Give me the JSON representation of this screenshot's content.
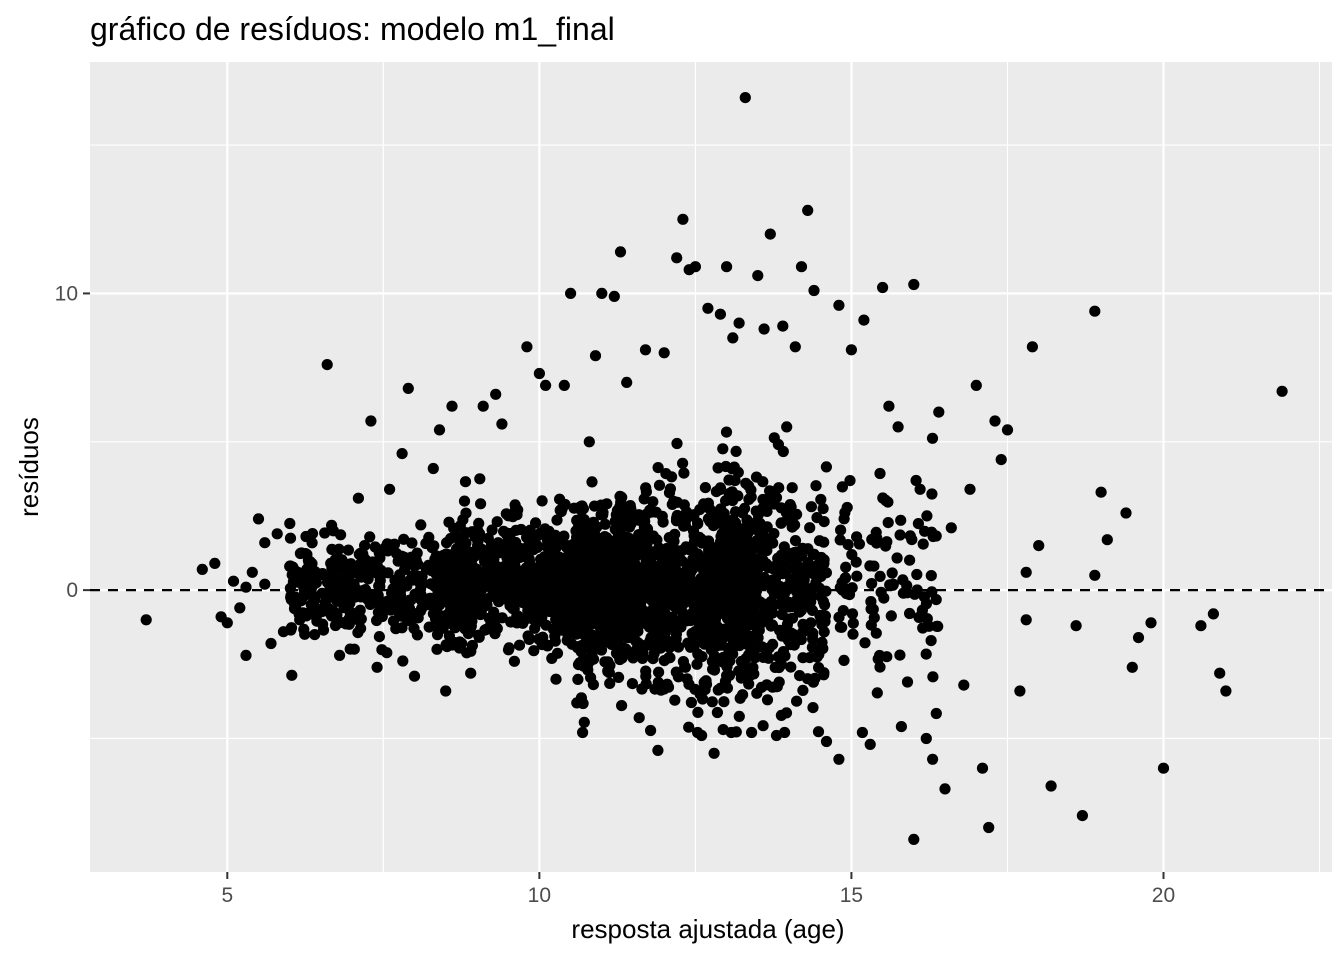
{
  "chart_data": {
    "type": "scatter",
    "title": "gráfico de resíduos: modelo m1_final",
    "xlabel": "resposta ajustada (age)",
    "ylabel": "resíduos",
    "xlim": [
      2.8,
      22.7
    ],
    "ylim": [
      -9.5,
      17.8
    ],
    "x_ticks": [
      5,
      10,
      15,
      20
    ],
    "x_tick_labels": [
      "5",
      "10",
      "15",
      "20"
    ],
    "y_ticks": [
      0,
      10
    ],
    "y_tick_labels": [
      "0",
      "10"
    ],
    "grid": true,
    "reference_line": {
      "y": 0,
      "style": "dashed",
      "color": "#000000"
    },
    "colors": {
      "panel": "#ebebeb",
      "grid": "#ffffff",
      "points": "#000000",
      "tick_label": "#4d4d4d"
    },
    "points": [
      [
        3.7,
        -1.0
      ],
      [
        4.6,
        0.7
      ],
      [
        4.8,
        0.9
      ],
      [
        4.9,
        -0.9
      ],
      [
        5.0,
        -1.1
      ],
      [
        5.1,
        0.3
      ],
      [
        5.2,
        -0.6
      ],
      [
        5.3,
        0.1
      ],
      [
        5.3,
        -2.2
      ],
      [
        5.4,
        0.6
      ],
      [
        5.5,
        2.4
      ],
      [
        5.6,
        0.2
      ],
      [
        5.6,
        1.6
      ],
      [
        5.7,
        -1.8
      ],
      [
        5.8,
        1.9
      ],
      [
        5.9,
        -1.4
      ],
      [
        6.0,
        0.8
      ],
      [
        6.1,
        -0.5
      ],
      [
        6.3,
        1.0
      ],
      [
        6.4,
        -1.5
      ],
      [
        6.6,
        7.6
      ],
      [
        6.7,
        2.0
      ],
      [
        6.8,
        -2.2
      ],
      [
        6.9,
        0.4
      ],
      [
        7.1,
        3.1
      ],
      [
        7.2,
        1.5
      ],
      [
        7.3,
        5.7
      ],
      [
        7.4,
        -2.6
      ],
      [
        7.6,
        3.4
      ],
      [
        7.7,
        -1.3
      ],
      [
        7.8,
        4.6
      ],
      [
        7.9,
        6.8
      ],
      [
        8.0,
        -2.9
      ],
      [
        8.1,
        2.2
      ],
      [
        8.3,
        4.1
      ],
      [
        8.4,
        5.4
      ],
      [
        8.5,
        -3.4
      ],
      [
        8.6,
        6.2
      ],
      [
        8.8,
        3.0
      ],
      [
        8.9,
        -2.8
      ],
      [
        9.1,
        6.2
      ],
      [
        9.3,
        6.6
      ],
      [
        9.4,
        5.6
      ],
      [
        9.6,
        -2.4
      ],
      [
        9.8,
        8.2
      ],
      [
        10.0,
        7.3
      ],
      [
        10.1,
        6.9
      ],
      [
        10.2,
        -2.3
      ],
      [
        10.4,
        6.9
      ],
      [
        10.5,
        10.0
      ],
      [
        10.6,
        -3.8
      ],
      [
        10.8,
        5.0
      ],
      [
        10.9,
        7.9
      ],
      [
        11.0,
        10.0
      ],
      [
        11.2,
        9.9
      ],
      [
        11.3,
        11.4
      ],
      [
        11.4,
        7.0
      ],
      [
        11.6,
        -4.3
      ],
      [
        11.7,
        8.1
      ],
      [
        11.9,
        -5.4
      ],
      [
        12.0,
        8.0
      ],
      [
        12.2,
        11.2
      ],
      [
        12.3,
        12.5
      ],
      [
        12.4,
        10.8
      ],
      [
        12.5,
        10.9
      ],
      [
        12.6,
        -4.9
      ],
      [
        12.7,
        9.5
      ],
      [
        12.8,
        -5.5
      ],
      [
        12.9,
        9.3
      ],
      [
        13.0,
        10.9
      ],
      [
        13.1,
        8.5
      ],
      [
        13.2,
        9.0
      ],
      [
        13.3,
        16.6
      ],
      [
        13.4,
        -4.8
      ],
      [
        13.5,
        10.6
      ],
      [
        13.6,
        8.8
      ],
      [
        13.7,
        12.0
      ],
      [
        13.8,
        -4.9
      ],
      [
        13.9,
        8.9
      ],
      [
        14.1,
        8.2
      ],
      [
        14.2,
        10.9
      ],
      [
        14.3,
        12.8
      ],
      [
        14.4,
        10.1
      ],
      [
        14.6,
        -5.1
      ],
      [
        14.8,
        9.6
      ],
      [
        14.8,
        -5.7
      ],
      [
        15.0,
        8.1
      ],
      [
        15.2,
        9.1
      ],
      [
        15.3,
        -5.2
      ],
      [
        15.5,
        10.2
      ],
      [
        15.6,
        6.2
      ],
      [
        15.8,
        -4.6
      ],
      [
        16.0,
        10.3
      ],
      [
        16.1,
        3.4
      ],
      [
        16.2,
        -5.0
      ],
      [
        16.3,
        -5.7
      ],
      [
        16.4,
        6.0
      ],
      [
        16.5,
        -6.7
      ],
      [
        16.6,
        2.1
      ],
      [
        16.8,
        -3.2
      ],
      [
        16.9,
        3.4
      ],
      [
        17.0,
        6.9
      ],
      [
        17.1,
        -6.0
      ],
      [
        17.2,
        -8.0
      ],
      [
        17.3,
        5.7
      ],
      [
        17.4,
        4.4
      ],
      [
        17.5,
        5.4
      ],
      [
        17.7,
        -3.4
      ],
      [
        17.8,
        0.6
      ],
      [
        17.9,
        8.2
      ],
      [
        18.0,
        1.5
      ],
      [
        18.2,
        -6.6
      ],
      [
        18.6,
        -1.2
      ],
      [
        18.7,
        -7.6
      ],
      [
        18.9,
        0.5
      ],
      [
        18.9,
        9.4
      ],
      [
        19.0,
        3.3
      ],
      [
        19.1,
        1.7
      ],
      [
        19.4,
        2.6
      ],
      [
        19.5,
        -2.6
      ],
      [
        19.6,
        -1.6
      ],
      [
        19.8,
        -1.1
      ],
      [
        20.0,
        -6.0
      ],
      [
        20.6,
        -1.2
      ],
      [
        20.8,
        -0.8
      ],
      [
        20.9,
        -2.8
      ],
      [
        21.0,
        -3.4
      ],
      [
        21.9,
        6.7
      ],
      [
        16.0,
        -8.4
      ],
      [
        17.8,
        -1.0
      ]
    ],
    "dense_cloud": [
      {
        "x_center": 7.5,
        "x_spread": 1.5,
        "y_center": 0.0,
        "y_spread": 1.1,
        "count": 420
      },
      {
        "x_center": 10.0,
        "x_spread": 1.5,
        "y_center": 0.2,
        "y_spread": 1.5,
        "count": 800
      },
      {
        "x_center": 12.0,
        "x_spread": 1.4,
        "y_center": 0.0,
        "y_spread": 2.1,
        "count": 1000
      },
      {
        "x_center": 13.6,
        "x_spread": 1.0,
        "y_center": 0.2,
        "y_spread": 2.5,
        "count": 500
      },
      {
        "x_center": 15.6,
        "x_spread": 0.8,
        "y_center": 0.0,
        "y_spread": 2.6,
        "count": 110
      }
    ]
  }
}
